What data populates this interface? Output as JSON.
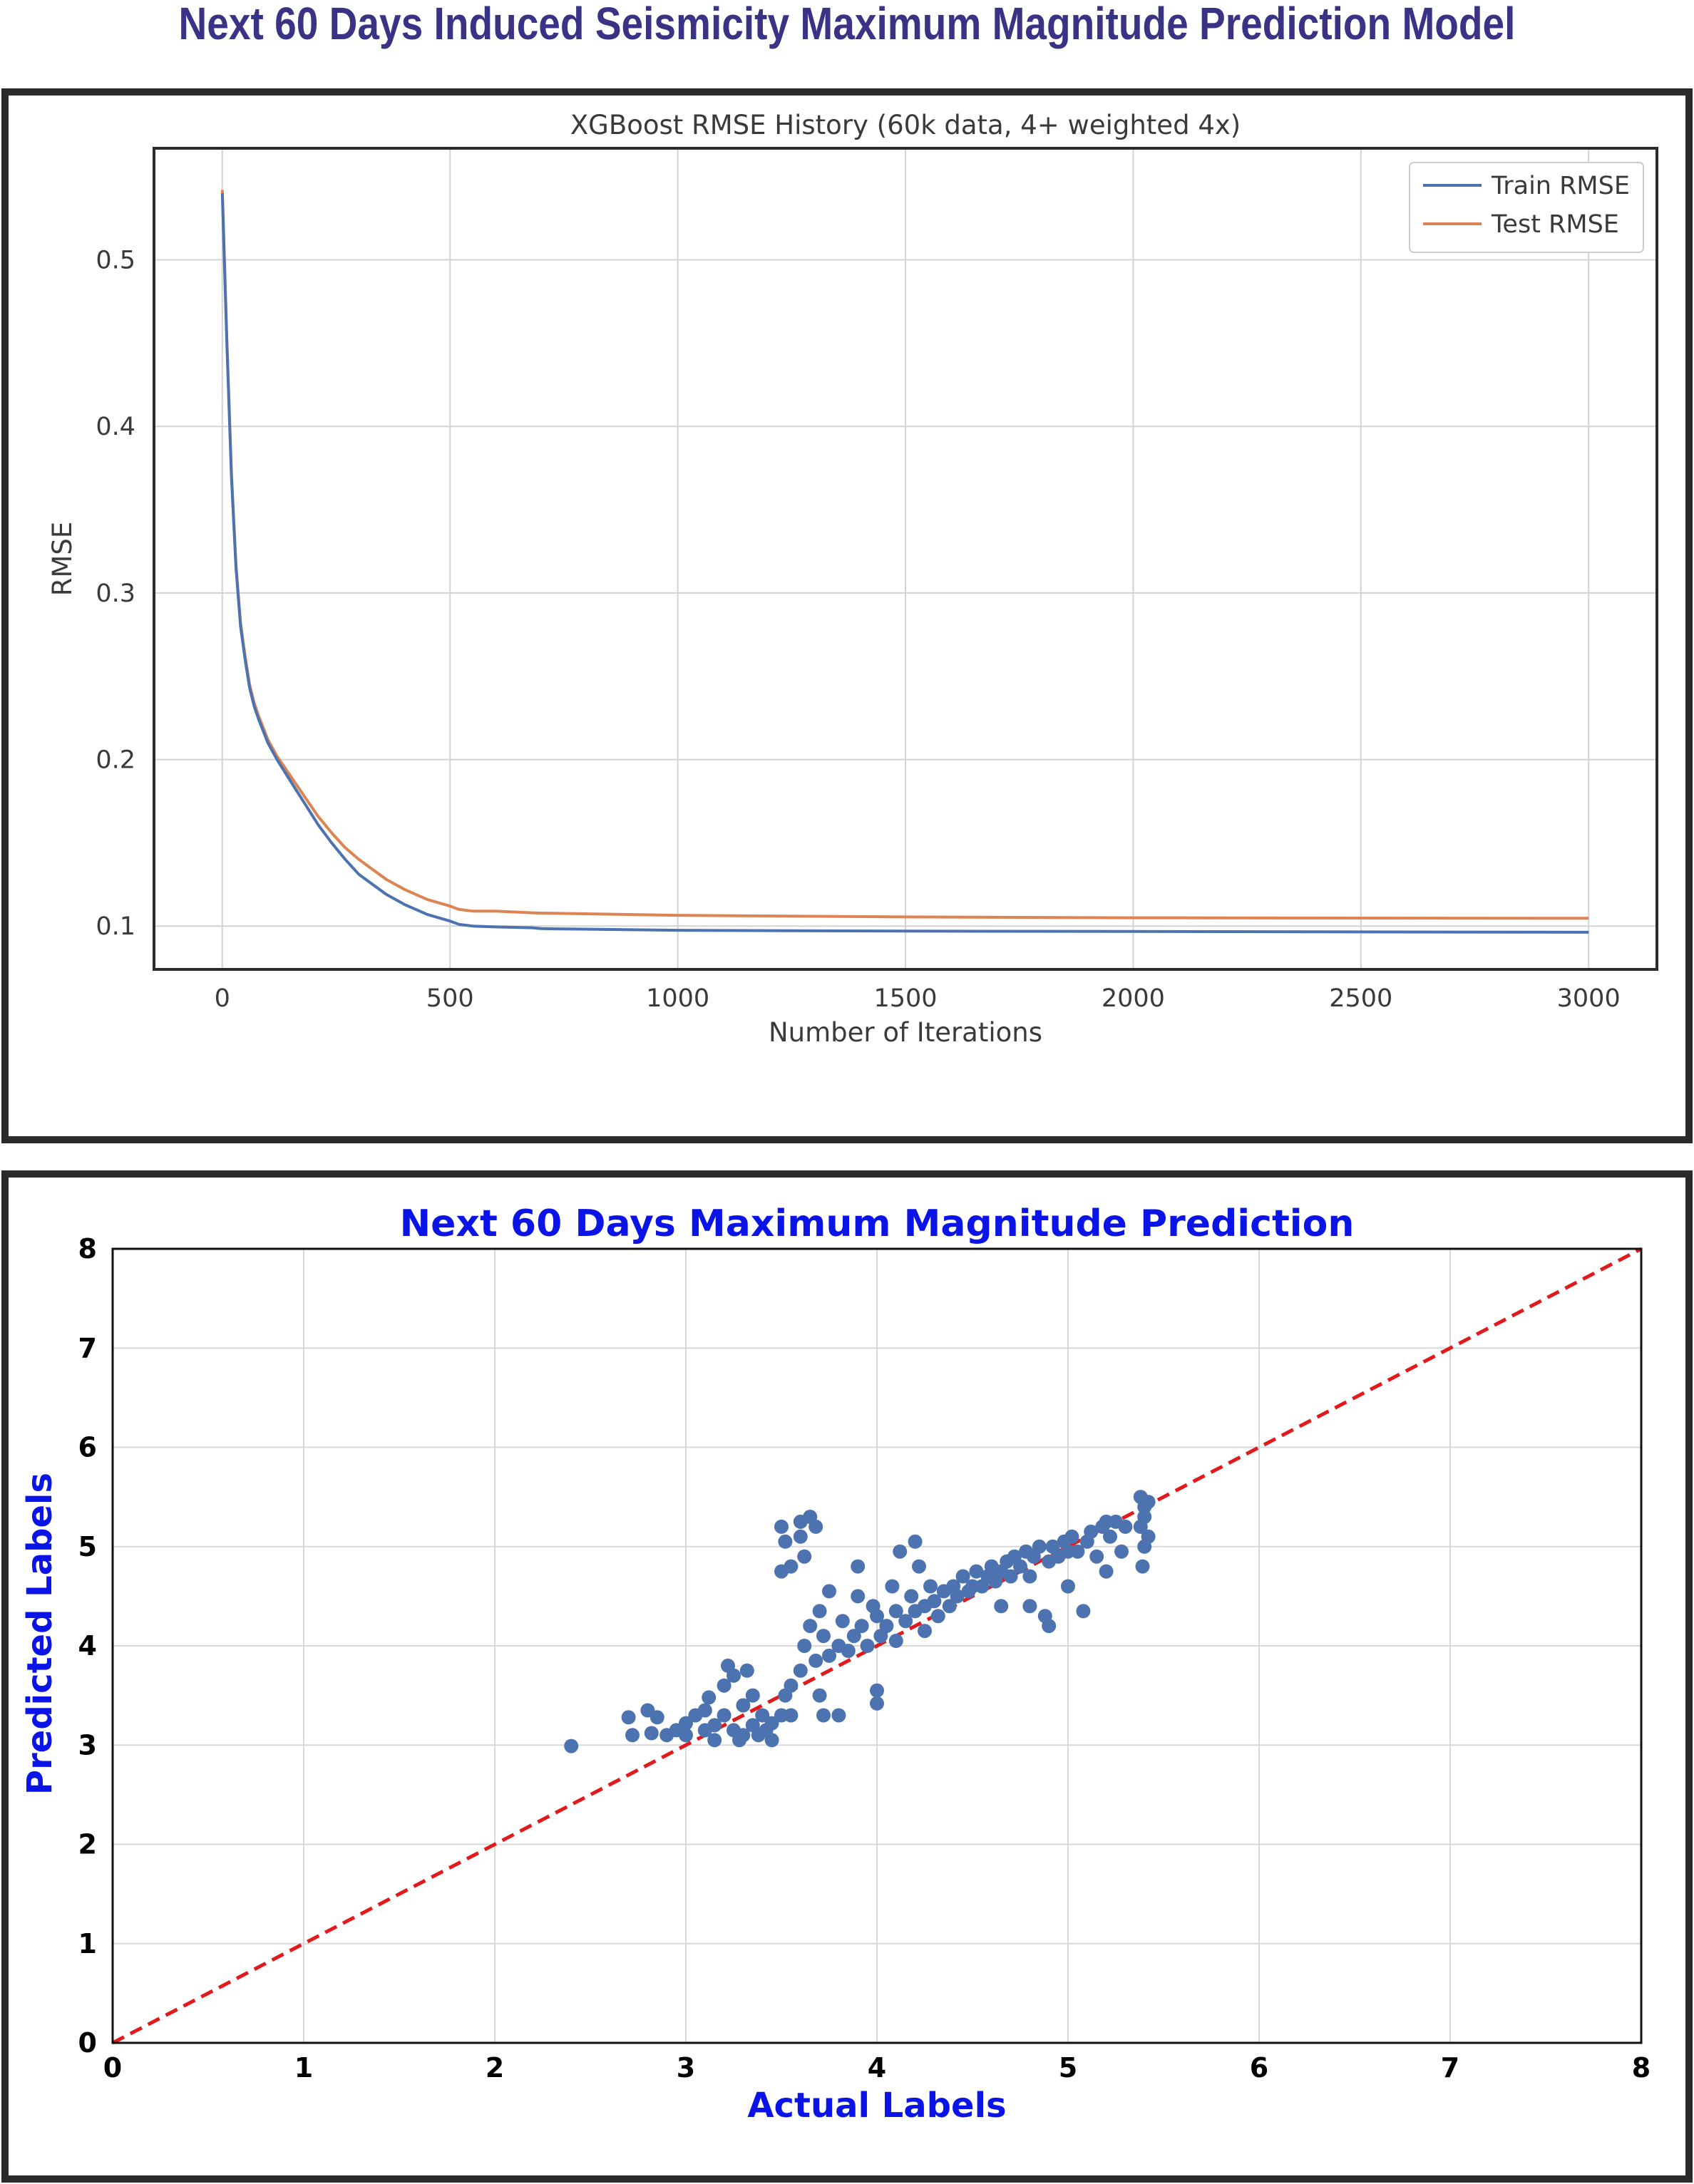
{
  "page_title": "Next 60 Days Induced Seismicity Maximum Magnitude Prediction Model",
  "chart_data": [
    {
      "type": "line",
      "title": "XGBoost RMSE History (60k data, 4+ weighted 4x)",
      "xlabel": "Number of Iterations",
      "ylabel": "RMSE",
      "xlim": [
        -150,
        3150
      ],
      "ylim": [
        0.074,
        0.567
      ],
      "x_ticks": [
        0,
        500,
        1000,
        1500,
        2000,
        2500,
        3000
      ],
      "y_ticks": [
        0.1,
        0.2,
        0.3,
        0.4,
        0.5
      ],
      "grid": true,
      "legend_position": "top-right",
      "colors": {
        "train": "#4c72b0",
        "test": "#dd8452"
      },
      "series": [
        {
          "name": "Train RMSE",
          "x": [
            0,
            10,
            20,
            30,
            40,
            50,
            60,
            70,
            80,
            100,
            120,
            150,
            180,
            210,
            240,
            270,
            300,
            330,
            360,
            400,
            450,
            500,
            520,
            550,
            600,
            680,
            700,
            1000,
            1500,
            2000,
            2500,
            3000
          ],
          "y": [
            0.54,
            0.45,
            0.37,
            0.315,
            0.28,
            0.26,
            0.243,
            0.232,
            0.224,
            0.21,
            0.2,
            0.187,
            0.174,
            0.161,
            0.15,
            0.14,
            0.131,
            0.125,
            0.119,
            0.113,
            0.107,
            0.103,
            0.101,
            0.1,
            0.0995,
            0.099,
            0.0985,
            0.0975,
            0.097,
            0.0968,
            0.0965,
            0.0963
          ]
        },
        {
          "name": "Test RMSE",
          "x": [
            0,
            10,
            20,
            30,
            40,
            50,
            60,
            70,
            80,
            100,
            120,
            150,
            180,
            210,
            240,
            270,
            300,
            330,
            360,
            400,
            450,
            500,
            520,
            550,
            600,
            680,
            700,
            1000,
            1500,
            2000,
            2500,
            3000
          ],
          "y": [
            0.542,
            0.452,
            0.372,
            0.317,
            0.282,
            0.262,
            0.245,
            0.234,
            0.226,
            0.212,
            0.202,
            0.19,
            0.178,
            0.166,
            0.156,
            0.147,
            0.14,
            0.134,
            0.128,
            0.122,
            0.116,
            0.112,
            0.11,
            0.109,
            0.109,
            0.108,
            0.1078,
            0.1065,
            0.1055,
            0.105,
            0.1048,
            0.1047
          ]
        }
      ]
    },
    {
      "type": "scatter",
      "title": "Next 60 Days Maximum Magnitude Prediction",
      "xlabel": "Actual Labels",
      "ylabel": "Predicted Labels",
      "xlim": [
        0,
        8
      ],
      "ylim": [
        0,
        8
      ],
      "x_ticks": [
        0,
        1,
        2,
        3,
        4,
        5,
        6,
        7,
        8
      ],
      "y_ticks": [
        0,
        1,
        2,
        3,
        4,
        5,
        6,
        7,
        8
      ],
      "grid": true,
      "colors": {
        "points": "#4c72b0",
        "reference": "#e31a1c",
        "title": "#0a14e6"
      },
      "reference_line": {
        "style": "dashed",
        "x": [
          0,
          8
        ],
        "y": [
          0,
          8
        ]
      },
      "points": [
        [
          2.4,
          2.99
        ],
        [
          2.7,
          3.28
        ],
        [
          2.72,
          3.1
        ],
        [
          2.8,
          3.35
        ],
        [
          2.82,
          3.12
        ],
        [
          2.85,
          3.28
        ],
        [
          2.9,
          3.1
        ],
        [
          2.95,
          3.15
        ],
        [
          3.0,
          3.1
        ],
        [
          3.0,
          3.22
        ],
        [
          3.05,
          3.3
        ],
        [
          3.1,
          3.15
        ],
        [
          3.1,
          3.35
        ],
        [
          3.12,
          3.48
        ],
        [
          3.15,
          3.2
        ],
        [
          3.15,
          3.05
        ],
        [
          3.2,
          3.6
        ],
        [
          3.2,
          3.3
        ],
        [
          3.22,
          3.8
        ],
        [
          3.25,
          3.15
        ],
        [
          3.25,
          3.7
        ],
        [
          3.28,
          3.05
        ],
        [
          3.3,
          3.4
        ],
        [
          3.3,
          3.1
        ],
        [
          3.32,
          3.75
        ],
        [
          3.35,
          3.2
        ],
        [
          3.35,
          3.5
        ],
        [
          3.38,
          3.1
        ],
        [
          3.4,
          3.3
        ],
        [
          3.42,
          3.15
        ],
        [
          3.45,
          3.05
        ],
        [
          3.45,
          3.22
        ],
        [
          3.5,
          3.3
        ],
        [
          3.52,
          3.5
        ],
        [
          3.55,
          3.6
        ],
        [
          3.55,
          3.3
        ],
        [
          3.5,
          4.75
        ],
        [
          3.5,
          5.2
        ],
        [
          3.52,
          5.05
        ],
        [
          3.55,
          4.8
        ],
        [
          3.6,
          5.25
        ],
        [
          3.6,
          5.1
        ],
        [
          3.62,
          4.9
        ],
        [
          3.65,
          5.3
        ],
        [
          3.68,
          5.2
        ],
        [
          3.6,
          3.75
        ],
        [
          3.62,
          4.0
        ],
        [
          3.65,
          4.2
        ],
        [
          3.68,
          3.85
        ],
        [
          3.7,
          4.35
        ],
        [
          3.72,
          4.1
        ],
        [
          3.75,
          3.9
        ],
        [
          3.7,
          3.5
        ],
        [
          3.72,
          3.3
        ],
        [
          3.8,
          3.3
        ],
        [
          3.75,
          4.55
        ],
        [
          3.8,
          4.0
        ],
        [
          3.82,
          4.25
        ],
        [
          3.85,
          3.95
        ],
        [
          3.88,
          4.1
        ],
        [
          3.9,
          4.5
        ],
        [
          3.9,
          4.8
        ],
        [
          3.92,
          4.2
        ],
        [
          3.95,
          4.0
        ],
        [
          3.98,
          4.4
        ],
        [
          4.0,
          3.55
        ],
        [
          4.0,
          3.42
        ],
        [
          4.0,
          4.3
        ],
        [
          4.02,
          4.1
        ],
        [
          4.05,
          4.2
        ],
        [
          4.08,
          4.6
        ],
        [
          4.1,
          4.35
        ],
        [
          4.1,
          4.05
        ],
        [
          4.12,
          4.95
        ],
        [
          4.15,
          4.25
        ],
        [
          4.18,
          4.5
        ],
        [
          4.2,
          4.35
        ],
        [
          4.2,
          5.05
        ],
        [
          4.22,
          4.8
        ],
        [
          4.25,
          4.4
        ],
        [
          4.25,
          4.15
        ],
        [
          4.28,
          4.6
        ],
        [
          4.3,
          4.45
        ],
        [
          4.32,
          4.3
        ],
        [
          4.35,
          4.55
        ],
        [
          4.38,
          4.4
        ],
        [
          4.4,
          4.6
        ],
        [
          4.42,
          4.5
        ],
        [
          4.45,
          4.7
        ],
        [
          4.48,
          4.55
        ],
        [
          4.5,
          4.6
        ],
        [
          4.52,
          4.75
        ],
        [
          4.55,
          4.6
        ],
        [
          4.58,
          4.7
        ],
        [
          4.6,
          4.8
        ],
        [
          4.62,
          4.65
        ],
        [
          4.65,
          4.75
        ],
        [
          4.65,
          4.4
        ],
        [
          4.68,
          4.85
        ],
        [
          4.7,
          4.7
        ],
        [
          4.72,
          4.9
        ],
        [
          4.75,
          4.8
        ],
        [
          4.78,
          4.95
        ],
        [
          4.8,
          4.7
        ],
        [
          4.8,
          4.4
        ],
        [
          4.82,
          4.9
        ],
        [
          4.85,
          5.0
        ],
        [
          4.88,
          4.3
        ],
        [
          4.9,
          4.2
        ],
        [
          4.9,
          4.85
        ],
        [
          4.92,
          5.0
        ],
        [
          4.95,
          4.9
        ],
        [
          4.98,
          5.05
        ],
        [
          5.0,
          4.95
        ],
        [
          5.0,
          4.6
        ],
        [
          5.02,
          5.1
        ],
        [
          5.05,
          4.95
        ],
        [
          5.08,
          4.35
        ],
        [
          5.1,
          5.05
        ],
        [
          5.12,
          5.15
        ],
        [
          5.15,
          4.9
        ],
        [
          5.18,
          5.2
        ],
        [
          5.2,
          5.25
        ],
        [
          5.2,
          4.75
        ],
        [
          5.22,
          5.1
        ],
        [
          5.25,
          5.25
        ],
        [
          5.28,
          4.95
        ],
        [
          5.3,
          5.2
        ],
        [
          5.38,
          5.5
        ],
        [
          5.38,
          5.2
        ],
        [
          5.39,
          4.8
        ],
        [
          5.4,
          5.4
        ],
        [
          5.4,
          5.0
        ],
        [
          5.4,
          5.3
        ],
        [
          5.42,
          5.45
        ],
        [
          5.42,
          5.1
        ]
      ]
    }
  ]
}
